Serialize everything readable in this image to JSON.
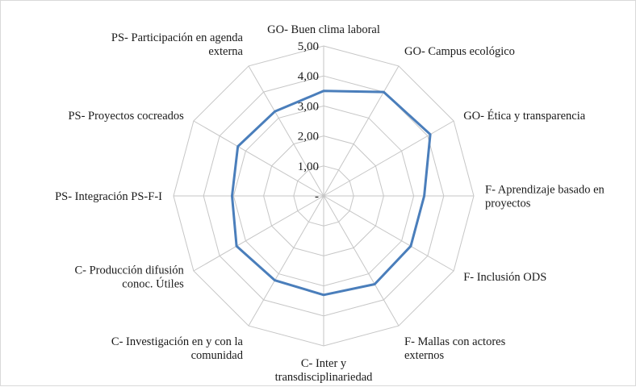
{
  "chart_data": {
    "type": "radar",
    "title": "",
    "rmin": 0,
    "rmax": 5,
    "grid": true,
    "tick_labels": [
      "-",
      "1,00",
      "2,00",
      "3,00",
      "4,00",
      "5,00"
    ],
    "categories": [
      "GO- Buen clima laboral",
      "GO- Campus ecológico",
      "GO- Ética y transparencia",
      "F- Aprendizaje basado en proyectos",
      "F- Inclusión ODS",
      "F- Mallas con actores externos",
      "C- Inter y transdisciplinariedad",
      "C- Investigación en y con la comunidad",
      "C- Producción difusión conoc. Útiles",
      "PS- Integración PS-F-I",
      "PS- Proyectos cocreados",
      "PS- Participación en agenda externa"
    ],
    "category_lines": [
      [
        "GO- Buen clima laboral"
      ],
      [
        "GO- Campus ecológico"
      ],
      [
        "GO- Ética y transparencia"
      ],
      [
        "F- Aprendizaje basado en",
        "proyectos"
      ],
      [
        "F- Inclusión ODS"
      ],
      [
        "F- Mallas con actores",
        "externos"
      ],
      [
        "C- Inter y",
        "transdisciplinariedad"
      ],
      [
        "C- Investigación en y con la",
        "comunidad"
      ],
      [
        "C- Producción difusión",
        "conoc. Útiles"
      ],
      [
        "PS- Integración PS-F-I"
      ],
      [
        "PS- Proyectos cocreados"
      ],
      [
        "PS- Participación en agenda",
        "externa"
      ]
    ],
    "series": [
      {
        "values": [
          3.5,
          4.0,
          4.1,
          3.35,
          3.35,
          3.4,
          3.3,
          3.25,
          3.35,
          3.05,
          3.3,
          3.25
        ],
        "color": "#4a7ebb"
      }
    ],
    "grid_color": "#c6c6c6"
  }
}
